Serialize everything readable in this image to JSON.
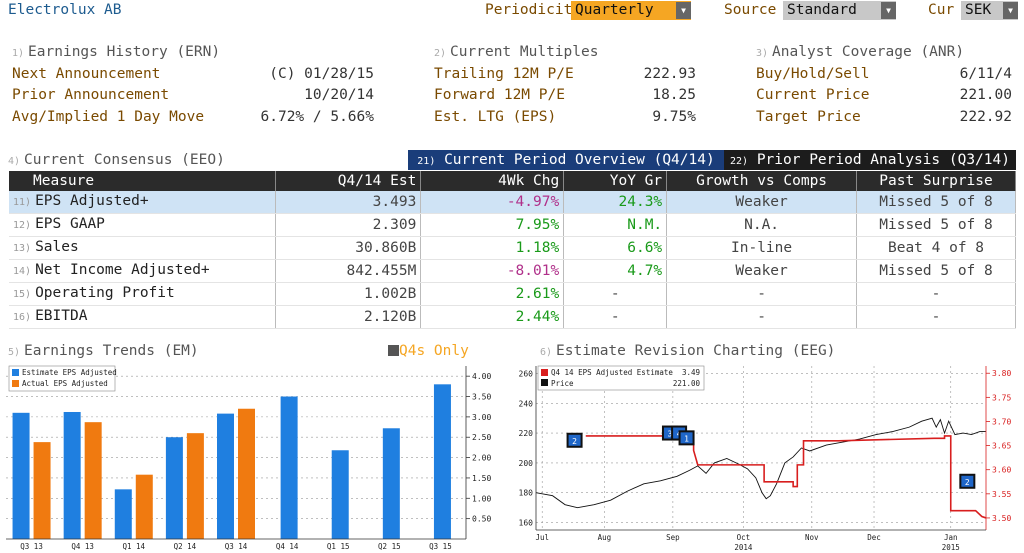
{
  "header": {
    "title": "Electrolux AB",
    "periodicity_label": "Periodicity",
    "periodicity_value": "Quarterly",
    "source_label": "Source",
    "source_value": "Standard",
    "cur_label": "Cur",
    "cur_value": "SEK"
  },
  "earnings_history": {
    "num": "1)",
    "title": "Earnings History (ERN)",
    "rows": [
      {
        "label": "Next Announcement",
        "value": "(C)  01/28/15"
      },
      {
        "label": "Prior Announcement",
        "value": "10/20/14"
      },
      {
        "label": "Avg/Implied 1 Day Move",
        "value": "6.72% / 5.66%"
      }
    ]
  },
  "current_multiples": {
    "num": "2)",
    "title": "Current Multiples",
    "rows": [
      {
        "label": "Trailing 12M P/E",
        "value": "222.93"
      },
      {
        "label": "Forward 12M P/E",
        "value": "18.25"
      },
      {
        "label": "Est. LTG (EPS)",
        "value": "9.75%"
      }
    ]
  },
  "analyst_coverage": {
    "num": "3)",
    "title": "Analyst Coverage (ANR)",
    "rows": [
      {
        "label": "Buy/Hold/Sell",
        "value": "6/11/4"
      },
      {
        "label": "Current Price",
        "value": "221.00"
      },
      {
        "label": "Target Price",
        "value": "222.92"
      }
    ]
  },
  "consensus": {
    "num": "4)",
    "title": "Current Consensus (EEO)",
    "tab_current": {
      "num": "21)",
      "label": "Current Period Overview (Q4/14)"
    },
    "tab_prior": {
      "num": "22)",
      "label": "Prior Period Analysis (Q3/14)"
    },
    "columns": [
      "Measure",
      "Q4/14 Est",
      "4Wk Chg",
      "YoY Gr",
      "Growth vs Comps",
      "Past Surprise"
    ],
    "rows": [
      {
        "num": "11)",
        "measure": "EPS Adjusted+",
        "est": "3.493",
        "chg": "-4.97%",
        "yoy": "24.3%",
        "comps": "Weaker",
        "surprise": "Missed 5 of 8"
      },
      {
        "num": "12)",
        "measure": "EPS GAAP",
        "est": "2.309",
        "chg": "7.95%",
        "yoy": "N.M.",
        "comps": "N.A.",
        "surprise": "Missed 5 of 8"
      },
      {
        "num": "13)",
        "measure": "Sales",
        "est": "30.860B",
        "chg": "1.18%",
        "yoy": "6.6%",
        "comps": "In-line",
        "surprise": "Beat 4 of 8"
      },
      {
        "num": "14)",
        "measure": "Net Income Adjusted+",
        "est": "842.455M",
        "chg": "-8.01%",
        "yoy": "4.7%",
        "comps": "Weaker",
        "surprise": "Missed 5 of 8"
      },
      {
        "num": "15)",
        "measure": "Operating Profit",
        "est": "1.002B",
        "chg": "2.61%",
        "yoy": "-",
        "comps": "-",
        "surprise": "-"
      },
      {
        "num": "16)",
        "measure": "EBITDA",
        "est": "2.120B",
        "chg": "2.44%",
        "yoy": "-",
        "comps": "-",
        "surprise": "-"
      }
    ]
  },
  "earnings_trends": {
    "num": "5)",
    "title": "Earnings Trends (EM)",
    "q4s_only": "Q4s Only"
  },
  "estimate_revision": {
    "num": "6)",
    "title": "Estimate Revision Charting (EEG)"
  },
  "chart_data": [
    {
      "type": "bar",
      "categories": [
        "Q3 13",
        "Q4 13",
        "Q1 14",
        "Q2 14",
        "Q3 14",
        "Q4 14",
        "Q1 15",
        "Q2 15",
        "Q3 15"
      ],
      "series": [
        {
          "name": "Estimate EPS Adjusted",
          "color": "#1f7fe0",
          "values": [
            3.1,
            3.12,
            1.22,
            2.5,
            3.08,
            3.5,
            2.18,
            2.72,
            3.8
          ]
        },
        {
          "name": "Actual EPS Adjusted",
          "color": "#f07a10",
          "values": [
            2.38,
            2.87,
            1.58,
            2.6,
            3.2,
            null,
            null,
            null,
            null
          ]
        }
      ],
      "y_ticks": [
        "0.50",
        "1.00",
        "1.50",
        "2.00",
        "2.50",
        "3.00",
        "3.50",
        "4.00"
      ],
      "ylim": [
        0,
        4.25
      ],
      "legend": "top-left"
    },
    {
      "type": "line",
      "x_ticks": [
        "Jul",
        "Aug",
        "Sep",
        "Oct",
        "Nov",
        "Dec",
        "Jan"
      ],
      "x_years": [
        "2014",
        "2015"
      ],
      "left_ticks": [
        "160",
        "180",
        "200",
        "220",
        "240",
        "260"
      ],
      "right_ticks": [
        "3.50",
        "3.55",
        "3.60",
        "3.65",
        "3.70",
        "3.75",
        "3.80"
      ],
      "left_lim": [
        155,
        265
      ],
      "right_lim": [
        3.475,
        3.815
      ],
      "series": [
        {
          "name": "Q4 14 EPS Adjusted Estimate",
          "value_label": "3.49",
          "color": "#d81e1e",
          "axis": "right",
          "points": [
            [
              0.12,
              3.67
            ],
            [
              0.38,
              3.67
            ],
            [
              0.38,
              3.64
            ],
            [
              0.39,
              3.61
            ],
            [
              0.55,
              3.61
            ],
            [
              0.55,
              3.575
            ],
            [
              0.62,
              3.575
            ],
            [
              0.62,
              3.565
            ],
            [
              0.63,
              3.565
            ],
            [
              0.63,
              3.61
            ],
            [
              0.645,
              3.61
            ],
            [
              0.645,
              3.66
            ],
            [
              0.73,
              3.66
            ],
            [
              0.96,
              3.665
            ],
            [
              0.985,
              3.665
            ],
            [
              0.985,
              3.67
            ],
            [
              1.0,
              3.67
            ],
            [
              1.0,
              3.515
            ],
            [
              1.06,
              3.515
            ],
            [
              1.075,
              3.503
            ],
            [
              1.085,
              3.5
            ]
          ]
        },
        {
          "name": "Price",
          "value_label": "221.00",
          "color": "#111111",
          "axis": "left",
          "points": [
            [
              0.0,
              180
            ],
            [
              0.04,
              178
            ],
            [
              0.07,
              172
            ],
            [
              0.1,
              170
            ],
            [
              0.14,
              172
            ],
            [
              0.18,
              175
            ],
            [
              0.22,
              181
            ],
            [
              0.26,
              186
            ],
            [
              0.3,
              188
            ],
            [
              0.34,
              191
            ],
            [
              0.37,
              195
            ],
            [
              0.39,
              198
            ],
            [
              0.41,
              193
            ],
            [
              0.43,
              200
            ],
            [
              0.46,
              203
            ],
            [
              0.49,
              199
            ],
            [
              0.51,
              196
            ],
            [
              0.53,
              190
            ],
            [
              0.545,
              180
            ],
            [
              0.555,
              176
            ],
            [
              0.565,
              178
            ],
            [
              0.58,
              186
            ],
            [
              0.6,
              200
            ],
            [
              0.62,
              204
            ],
            [
              0.64,
              210
            ],
            [
              0.66,
              208
            ],
            [
              0.7,
              212
            ],
            [
              0.74,
              214
            ],
            [
              0.78,
              216
            ],
            [
              0.82,
              219
            ],
            [
              0.86,
              221
            ],
            [
              0.9,
              224
            ],
            [
              0.93,
              228
            ],
            [
              0.955,
              230
            ],
            [
              0.965,
              224
            ],
            [
              0.975,
              229
            ],
            [
              0.985,
              220
            ],
            [
              0.995,
              228
            ],
            [
              1.01,
              219
            ],
            [
              1.03,
              220
            ],
            [
              1.05,
              219
            ],
            [
              1.07,
              221
            ],
            [
              1.085,
              221
            ]
          ]
        }
      ],
      "event_markers": [
        "2",
        "3",
        "4",
        "1",
        "2"
      ]
    }
  ]
}
